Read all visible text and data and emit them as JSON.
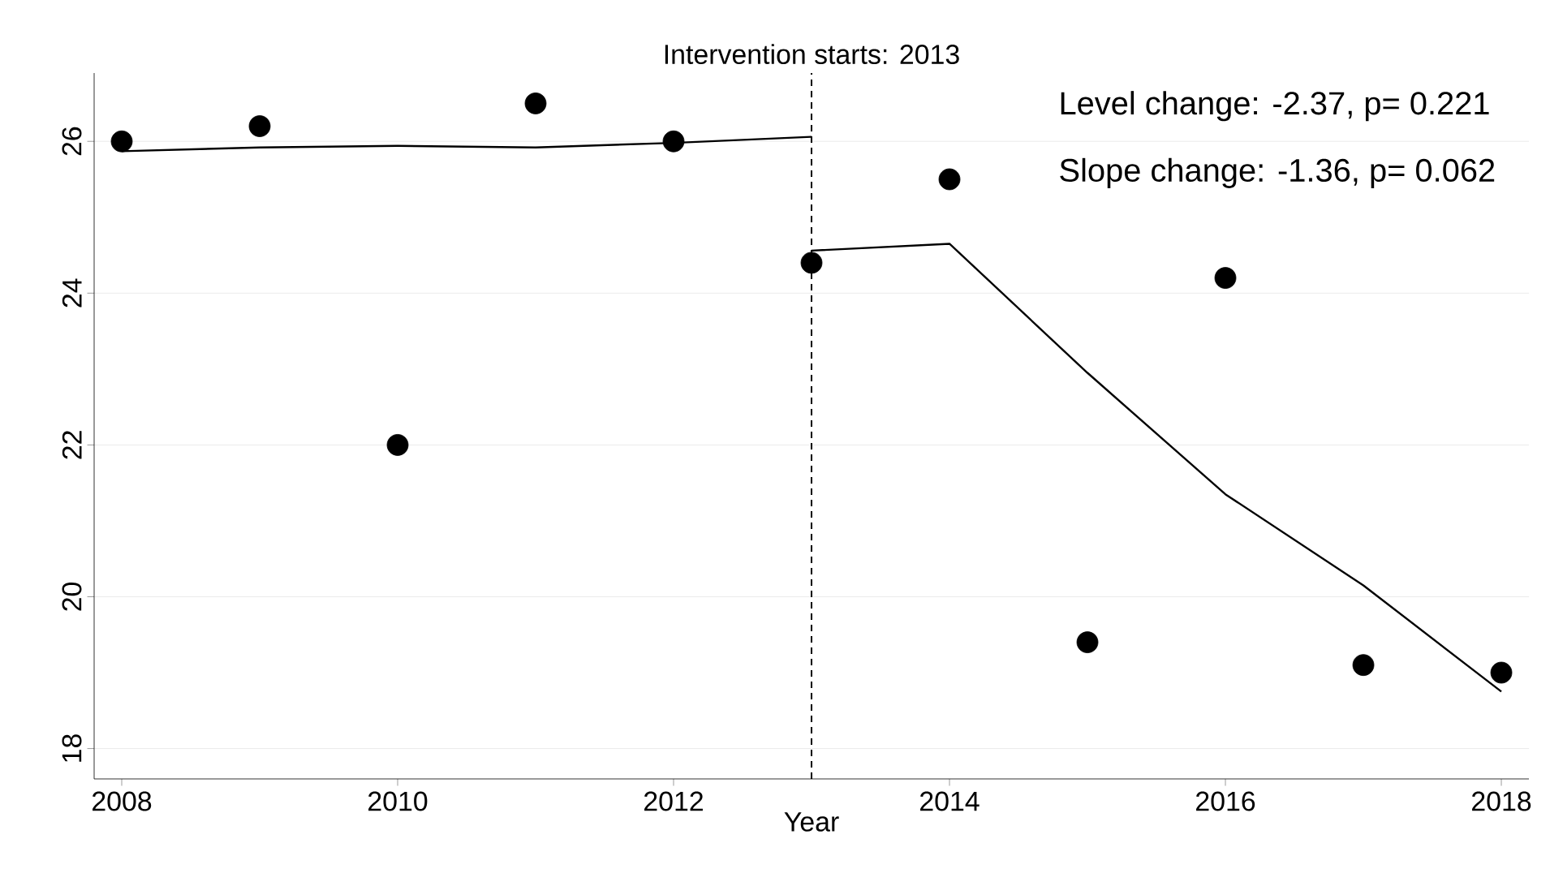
{
  "chart_data": {
    "type": "scatter",
    "title": "Intervention starts: 2013",
    "xlabel": "Year",
    "annotations": [
      "Level change: -2.37, p= 0.221",
      "Slope change: -1.36, p= 0.062"
    ],
    "series": [
      {
        "type": "scatter",
        "color": "#000000",
        "marker": "circle",
        "x": [
          2008,
          2009,
          2010,
          2011,
          2012,
          2013,
          2014,
          2015,
          2016,
          2017,
          2018
        ],
        "values": [
          26.0,
          26.2,
          22.0,
          26.5,
          26.0,
          24.4,
          25.5,
          19.4,
          24.2,
          19.1,
          19.0
        ]
      },
      {
        "type": "line",
        "color": "#000000",
        "line_style": "solid",
        "x": [
          2008,
          2009,
          2010,
          2011,
          2012,
          2013
        ],
        "values": [
          25.87,
          25.92,
          25.94,
          25.92,
          25.98,
          26.06
        ]
      },
      {
        "type": "line",
        "color": "#000000",
        "line_style": "solid",
        "x": [
          2013,
          2014,
          2015,
          2016,
          2017,
          2018
        ],
        "values": [
          24.56,
          24.65,
          22.95,
          21.35,
          20.15,
          18.75
        ]
      }
    ],
    "ref_lines": [
      {
        "axis": "x",
        "value": 2013,
        "line_style": "dashed",
        "color": "#000000"
      }
    ],
    "xlim": [
      2007.8,
      2018.2
    ],
    "ylim": [
      17.6,
      26.9
    ],
    "xticks": [
      2008,
      2010,
      2012,
      2014,
      2016,
      2018
    ],
    "yticks": [
      18,
      20,
      22,
      24,
      26
    ],
    "grid": "y"
  }
}
